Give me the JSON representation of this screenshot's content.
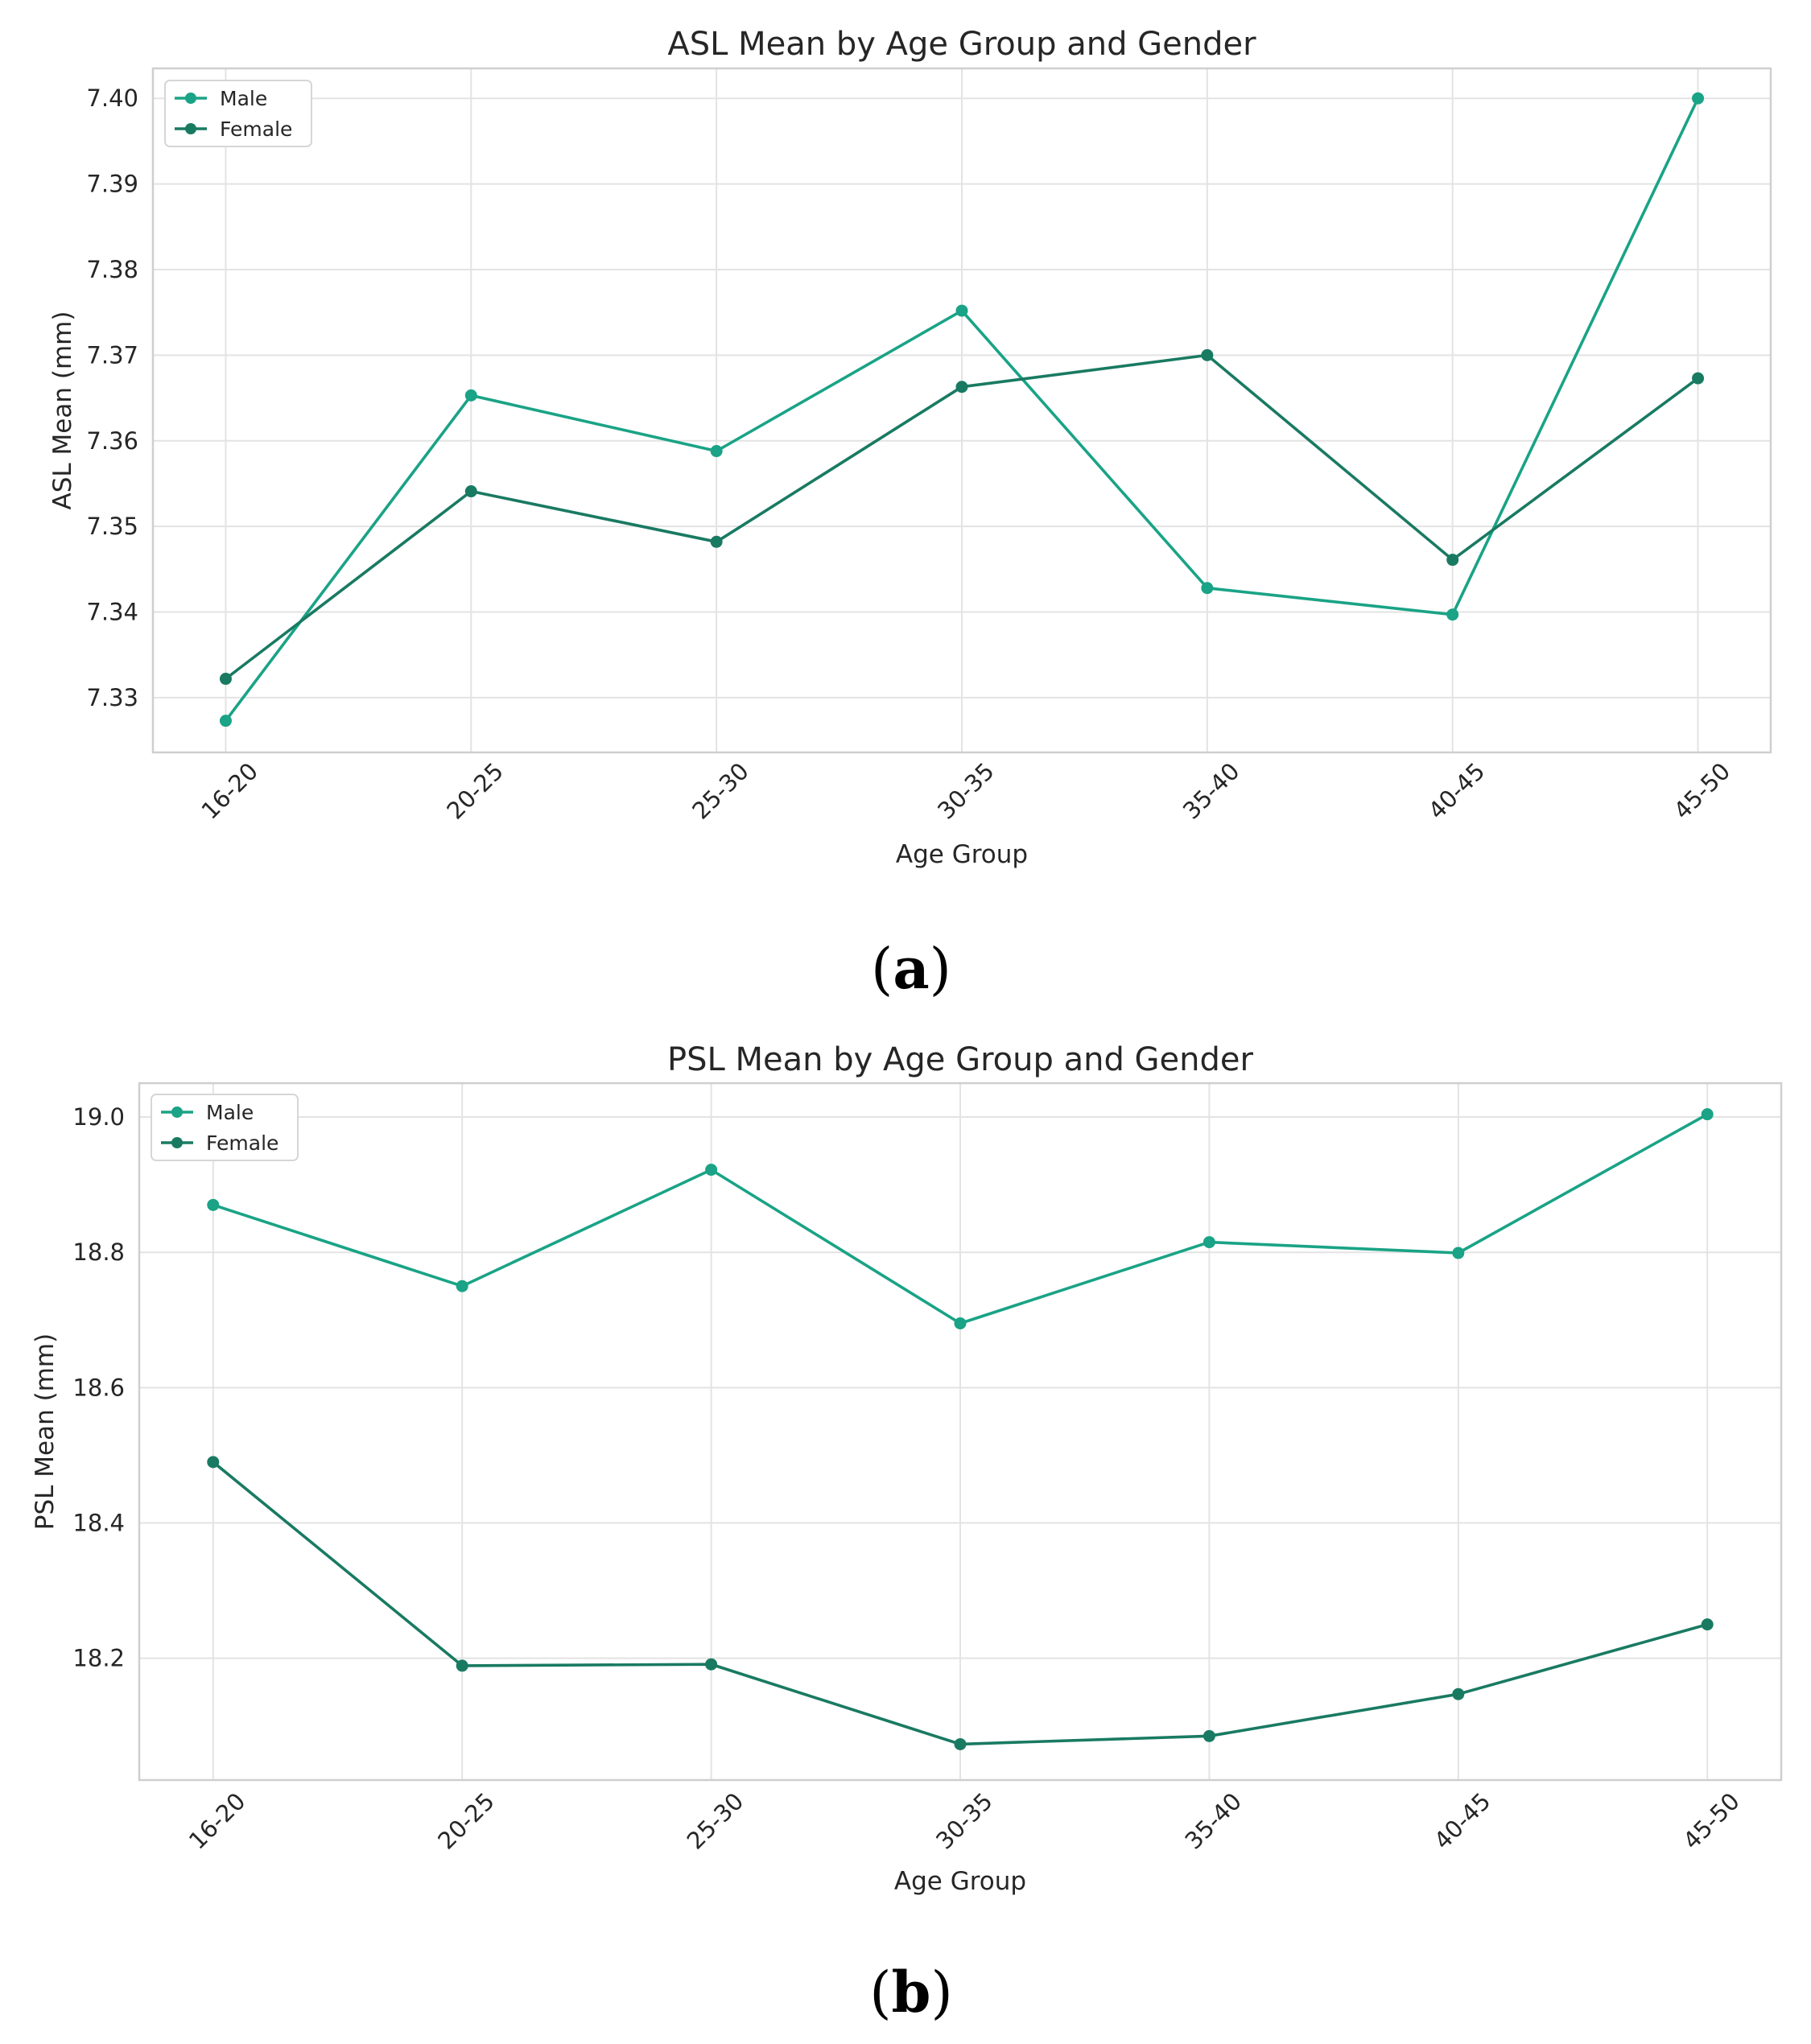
{
  "colors": {
    "male": "#1aa386",
    "female": "#197a62",
    "background": "#ffffff"
  },
  "chart_data": [
    {
      "type": "line",
      "title": "ASL Mean by Age Group and Gender",
      "xlabel": "Age Group",
      "ylabel": "ASL Mean (mm)",
      "categories": [
        "16-20",
        "20-25",
        "25-30",
        "30-35",
        "35-40",
        "40-45",
        "45-50"
      ],
      "ylim": [
        7.3236,
        7.4035
      ],
      "yticks": [
        7.33,
        7.34,
        7.35,
        7.36,
        7.37,
        7.38,
        7.39,
        7.4
      ],
      "ytick_labels": [
        "7.33",
        "7.34",
        "7.35",
        "7.36",
        "7.37",
        "7.38",
        "7.39",
        "7.40"
      ],
      "grid": true,
      "legend_position": "upper-left",
      "series": [
        {
          "name": "Male",
          "color": "#1aa386",
          "values": [
            7.3273,
            7.3653,
            7.3588,
            7.3752,
            7.3428,
            7.3397,
            7.4
          ]
        },
        {
          "name": "Female",
          "color": "#197a62",
          "values": [
            7.3322,
            7.3541,
            7.3482,
            7.3663,
            7.37,
            7.3461,
            7.3673
          ]
        }
      ],
      "panel_label": "a"
    },
    {
      "type": "line",
      "title": "PSL Mean by Age Group and Gender",
      "xlabel": "Age Group",
      "ylabel": "PSL Mean (mm)",
      "categories": [
        "16-20",
        "20-25",
        "25-30",
        "30-35",
        "35-40",
        "40-45",
        "45-50"
      ],
      "ylim": [
        18.02,
        19.05
      ],
      "yticks": [
        18.2,
        18.4,
        18.6,
        18.8,
        19.0
      ],
      "ytick_labels": [
        "18.2",
        "18.4",
        "18.6",
        "18.8",
        "19.0"
      ],
      "grid": true,
      "legend_position": "upper-left",
      "series": [
        {
          "name": "Male",
          "color": "#1aa386",
          "values": [
            18.87,
            18.75,
            18.922,
            18.695,
            18.815,
            18.799,
            19.004
          ]
        },
        {
          "name": "Female",
          "color": "#197a62",
          "values": [
            18.49,
            18.189,
            18.191,
            18.073,
            18.085,
            18.147,
            18.25
          ]
        }
      ],
      "panel_label": "b"
    }
  ]
}
